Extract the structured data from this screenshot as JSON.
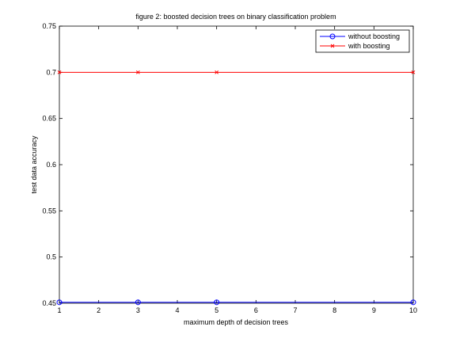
{
  "chart_data": {
    "type": "line",
    "title": "figure 2: boosted decision trees on binary classification problem",
    "xlabel": "maximum depth of decision trees",
    "ylabel": "test data accuracy",
    "xlim": [
      1,
      10
    ],
    "ylim": [
      0.45,
      0.75
    ],
    "xticks": [
      1,
      2,
      3,
      4,
      5,
      6,
      7,
      8,
      9,
      10
    ],
    "yticks": [
      0.45,
      0.5,
      0.55,
      0.6,
      0.65,
      0.7,
      0.75
    ],
    "ytick_labels": [
      "0.45",
      "0.5",
      "0.55",
      "0.6",
      "0.65",
      "0.7",
      "0.75"
    ],
    "grid": false,
    "legend_position": "top-right",
    "series": [
      {
        "name": "without boosting",
        "color": "#0000ff",
        "marker": "circle",
        "x": [
          1,
          3,
          5,
          10
        ],
        "y": [
          0.451,
          0.451,
          0.451,
          0.451
        ]
      },
      {
        "name": "with boosting",
        "color": "#ff0000",
        "marker": "x",
        "x": [
          1,
          3,
          5,
          10
        ],
        "y": [
          0.7,
          0.7,
          0.7,
          0.7
        ]
      }
    ]
  }
}
